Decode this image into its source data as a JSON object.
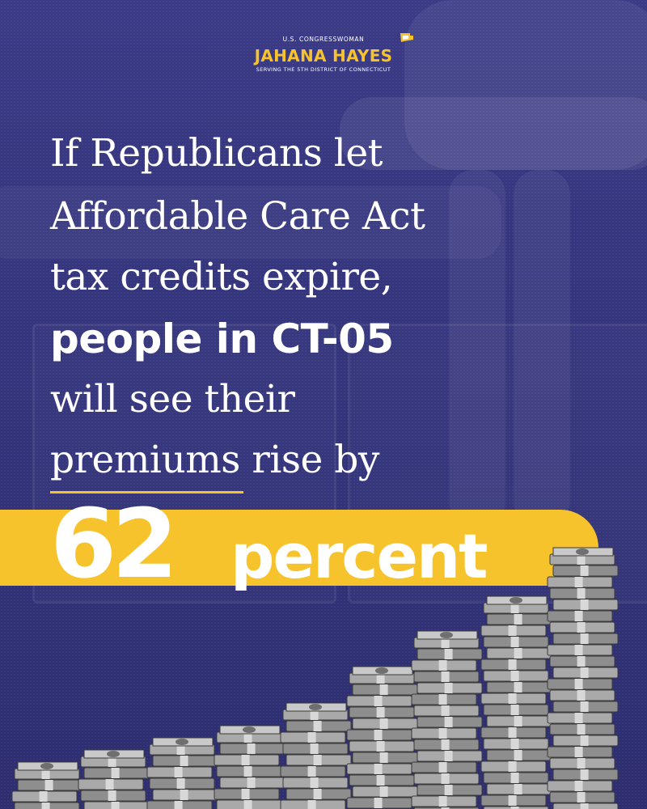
{
  "logo": {
    "line1": "U.S. CONGRESSWOMAN",
    "name": "JAHANA HAYES",
    "line3": "SERVING THE 5TH DISTRICT OF CONNECTICUT"
  },
  "headline": {
    "line1": "If Republicans let",
    "line2": "Affordable Care Act",
    "line3": "tax credits expire,",
    "line4": "people in CT-05",
    "line5": "will see their",
    "line6_word": "premiums",
    "line6_rest": " rise by"
  },
  "stat": {
    "number": "62",
    "unit": "percent"
  },
  "colors": {
    "background": "#34347c",
    "accent_yellow": "#f6c32c",
    "text": "#ffffff"
  },
  "icons": [
    "connecticut-state-icon",
    "money-stack-illustration"
  ]
}
